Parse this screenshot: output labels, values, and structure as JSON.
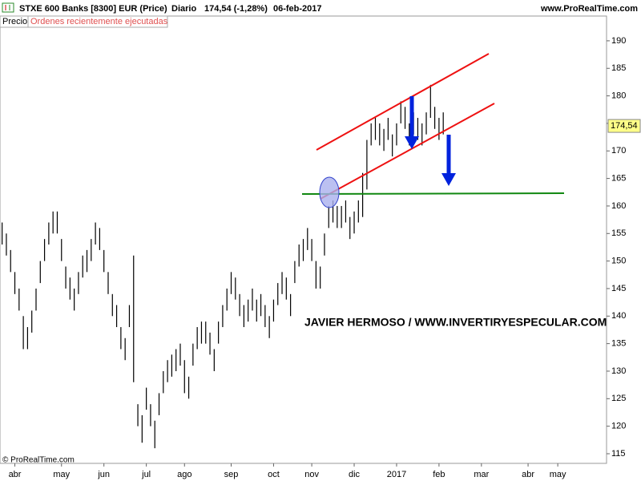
{
  "chart_data": {
    "type": "ohlc",
    "title": "STXE 600 Banks [8300] EUR (Price)",
    "period": "Diario",
    "last_change": "174,54 (-1,28%)",
    "date": "06-feb-2017",
    "site": "www.ProRealTime.com",
    "panel_label": "Precio",
    "orders_label": "Ordenes recientemente ejecutadas",
    "annotation": "JAVIER HERMOSO / WWW.INVERTIRYESPECULAR.COM",
    "copyright": "© ProRealTime.com",
    "last_price": {
      "value": 174.54,
      "label": "174,54"
    },
    "color": "#000000",
    "categories": [
      null,
      null,
      null,
      "abr",
      null,
      null,
      null,
      null,
      null,
      null,
      null,
      null,
      null,
      null,
      "may",
      null,
      null,
      null,
      null,
      null,
      null,
      null,
      null,
      null,
      "jun",
      null,
      null,
      null,
      null,
      null,
      null,
      null,
      null,
      null,
      "jul",
      null,
      null,
      null,
      null,
      null,
      null,
      null,
      null,
      "ago",
      null,
      null,
      null,
      null,
      null,
      null,
      null,
      null,
      null,
      null,
      "sep",
      null,
      null,
      null,
      null,
      null,
      null,
      null,
      null,
      null,
      "oct",
      null,
      null,
      null,
      null,
      null,
      null,
      null,
      null,
      "nov",
      null,
      null,
      null,
      null,
      null,
      null,
      null,
      null,
      null,
      "dic",
      null,
      null,
      null,
      null,
      null,
      null,
      null,
      null,
      null,
      "2017",
      null,
      null,
      null,
      null,
      null,
      null,
      null,
      null,
      null,
      "feb",
      null,
      null,
      null,
      null,
      null,
      null,
      null,
      null,
      null,
      "mar",
      null,
      null,
      null,
      null,
      null,
      null,
      null,
      null,
      null,
      null,
      "abr",
      null,
      null,
      null,
      null,
      null,
      null,
      "may",
      null,
      null,
      null,
      null,
      null,
      null,
      null,
      null,
      null,
      null,
      null
    ],
    "high": [
      157,
      155,
      152,
      148,
      145,
      140,
      138,
      141,
      145,
      150,
      154,
      157,
      159,
      159,
      154,
      149,
      147,
      145,
      148,
      151,
      152,
      154,
      157,
      156,
      152,
      148,
      144,
      142,
      138,
      136,
      142,
      151,
      124,
      122,
      127,
      124,
      121,
      126,
      130,
      132,
      133,
      134,
      135,
      132,
      129,
      135,
      138,
      139,
      139,
      137,
      134,
      139,
      142,
      145,
      148,
      147,
      144,
      142,
      143,
      145,
      143,
      144,
      142,
      140,
      143,
      146,
      148,
      147,
      144,
      150,
      153,
      154,
      156,
      154,
      150,
      149,
      155,
      160,
      161,
      160,
      160,
      161,
      158,
      159,
      161,
      166,
      172,
      175,
      176,
      175,
      174,
      176,
      173,
      175,
      179,
      178,
      175,
      177,
      176,
      175,
      177,
      182,
      178,
      176,
      177,
      null,
      null,
      null,
      null,
      null,
      null,
      null,
      null,
      null,
      null,
      null,
      null,
      null,
      null,
      null,
      null,
      null,
      null,
      null,
      null,
      null,
      null,
      null,
      null,
      null,
      null,
      null,
      null,
      null,
      null,
      null,
      null,
      null,
      null,
      null,
      null,
      null,
      null
    ],
    "low": [
      153,
      151,
      148,
      144,
      141,
      134,
      134,
      137,
      141,
      146,
      150,
      153,
      155,
      155,
      150,
      145,
      143,
      141,
      144,
      147,
      148,
      150,
      153,
      152,
      148,
      144,
      140,
      138,
      134,
      132,
      138,
      128,
      120,
      117,
      123,
      120,
      116,
      122,
      126,
      128,
      129,
      130,
      131,
      126,
      125,
      131,
      134,
      135,
      135,
      133,
      130,
      135,
      138,
      141,
      144,
      143,
      140,
      138,
      139,
      141,
      139,
      140,
      138,
      136,
      139,
      142,
      144,
      143,
      140,
      146,
      149,
      150,
      152,
      150,
      145,
      145,
      151,
      156,
      157,
      156,
      156,
      157,
      154,
      155,
      157,
      158,
      163,
      171,
      172,
      171,
      170,
      172,
      169,
      171,
      175,
      174,
      171,
      173,
      172,
      171,
      173,
      176,
      174,
      172,
      173,
      null,
      null,
      null,
      null,
      null,
      null,
      null,
      null,
      null,
      null,
      null,
      null,
      null,
      null,
      null,
      null,
      null,
      null,
      null,
      null,
      null,
      null,
      null,
      null,
      null,
      null,
      null,
      null,
      null,
      null,
      null,
      null,
      null,
      null,
      null,
      null,
      null,
      null
    ],
    "ylim": [
      113.25,
      194.5
    ],
    "yticks": [
      115,
      120,
      125,
      130,
      135,
      140,
      145,
      150,
      155,
      160,
      165,
      170,
      175,
      180,
      185,
      190
    ]
  }
}
